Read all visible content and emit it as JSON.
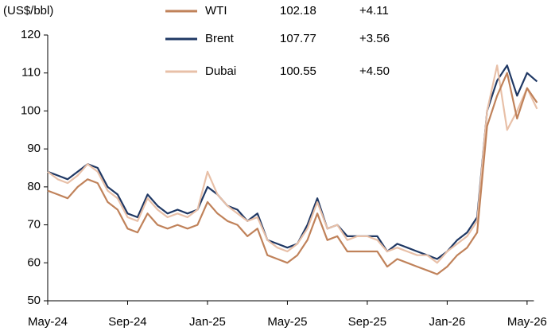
{
  "chart_data": {
    "type": "line",
    "y_label": "(US$/bbl)",
    "categories": [
      "May-24",
      null,
      null,
      null,
      null,
      null,
      null,
      null,
      "Sep-24",
      null,
      null,
      null,
      null,
      null,
      null,
      null,
      "Jan-25",
      null,
      null,
      null,
      null,
      null,
      null,
      null,
      "May-25",
      null,
      null,
      null,
      null,
      null,
      null,
      null,
      "Sep-25",
      null,
      null,
      null,
      null,
      null,
      null,
      null,
      "Jan-26",
      null,
      null,
      null,
      null,
      null,
      null,
      null,
      "May-26",
      null
    ],
    "series": [
      {
        "name": "WTI",
        "color": "#c0825a",
        "latest": 102.18,
        "change": "+4.11",
        "values": [
          79,
          78,
          77,
          80,
          82,
          81,
          76,
          74,
          69,
          68,
          73,
          70,
          69,
          70,
          69,
          70,
          76,
          73,
          71,
          70,
          67,
          69,
          62,
          61,
          60,
          62,
          66,
          73,
          66,
          67,
          63,
          63,
          63,
          63,
          59,
          61,
          60,
          59,
          58,
          57,
          59,
          62,
          64,
          68,
          96,
          104,
          110,
          98,
          106,
          102.18
        ]
      },
      {
        "name": "Brent",
        "color": "#1f3864",
        "latest": 107.77,
        "change": "+3.56",
        "values": [
          84,
          83,
          82,
          84,
          86,
          85,
          80,
          78,
          73,
          72,
          78,
          75,
          73,
          74,
          73,
          74,
          80,
          78,
          75,
          74,
          71,
          73,
          66,
          65,
          64,
          65,
          70,
          77,
          69,
          70,
          67,
          67,
          67,
          67,
          63,
          65,
          64,
          63,
          62,
          61,
          63,
          66,
          68,
          72,
          100,
          108,
          112,
          104,
          110,
          107.77
        ]
      },
      {
        "name": "Dubai",
        "color": "#e8c0a8",
        "latest": 100.55,
        "change": "+4.50",
        "values": [
          84,
          82,
          81,
          83,
          86,
          84,
          79,
          77,
          72,
          71,
          77,
          74,
          72,
          73,
          72,
          74,
          84,
          78,
          75,
          73,
          71,
          72,
          66,
          64,
          63,
          65,
          69,
          76,
          69,
          70,
          66,
          67,
          67,
          66,
          63,
          64,
          63,
          62,
          62,
          60,
          63,
          65,
          67,
          71,
          100,
          112,
          95,
          100,
          106,
          100.55
        ]
      }
    ],
    "ylim": [
      50,
      120
    ],
    "yticks": [
      50,
      60,
      70,
      80,
      90,
      100,
      110,
      120
    ]
  }
}
